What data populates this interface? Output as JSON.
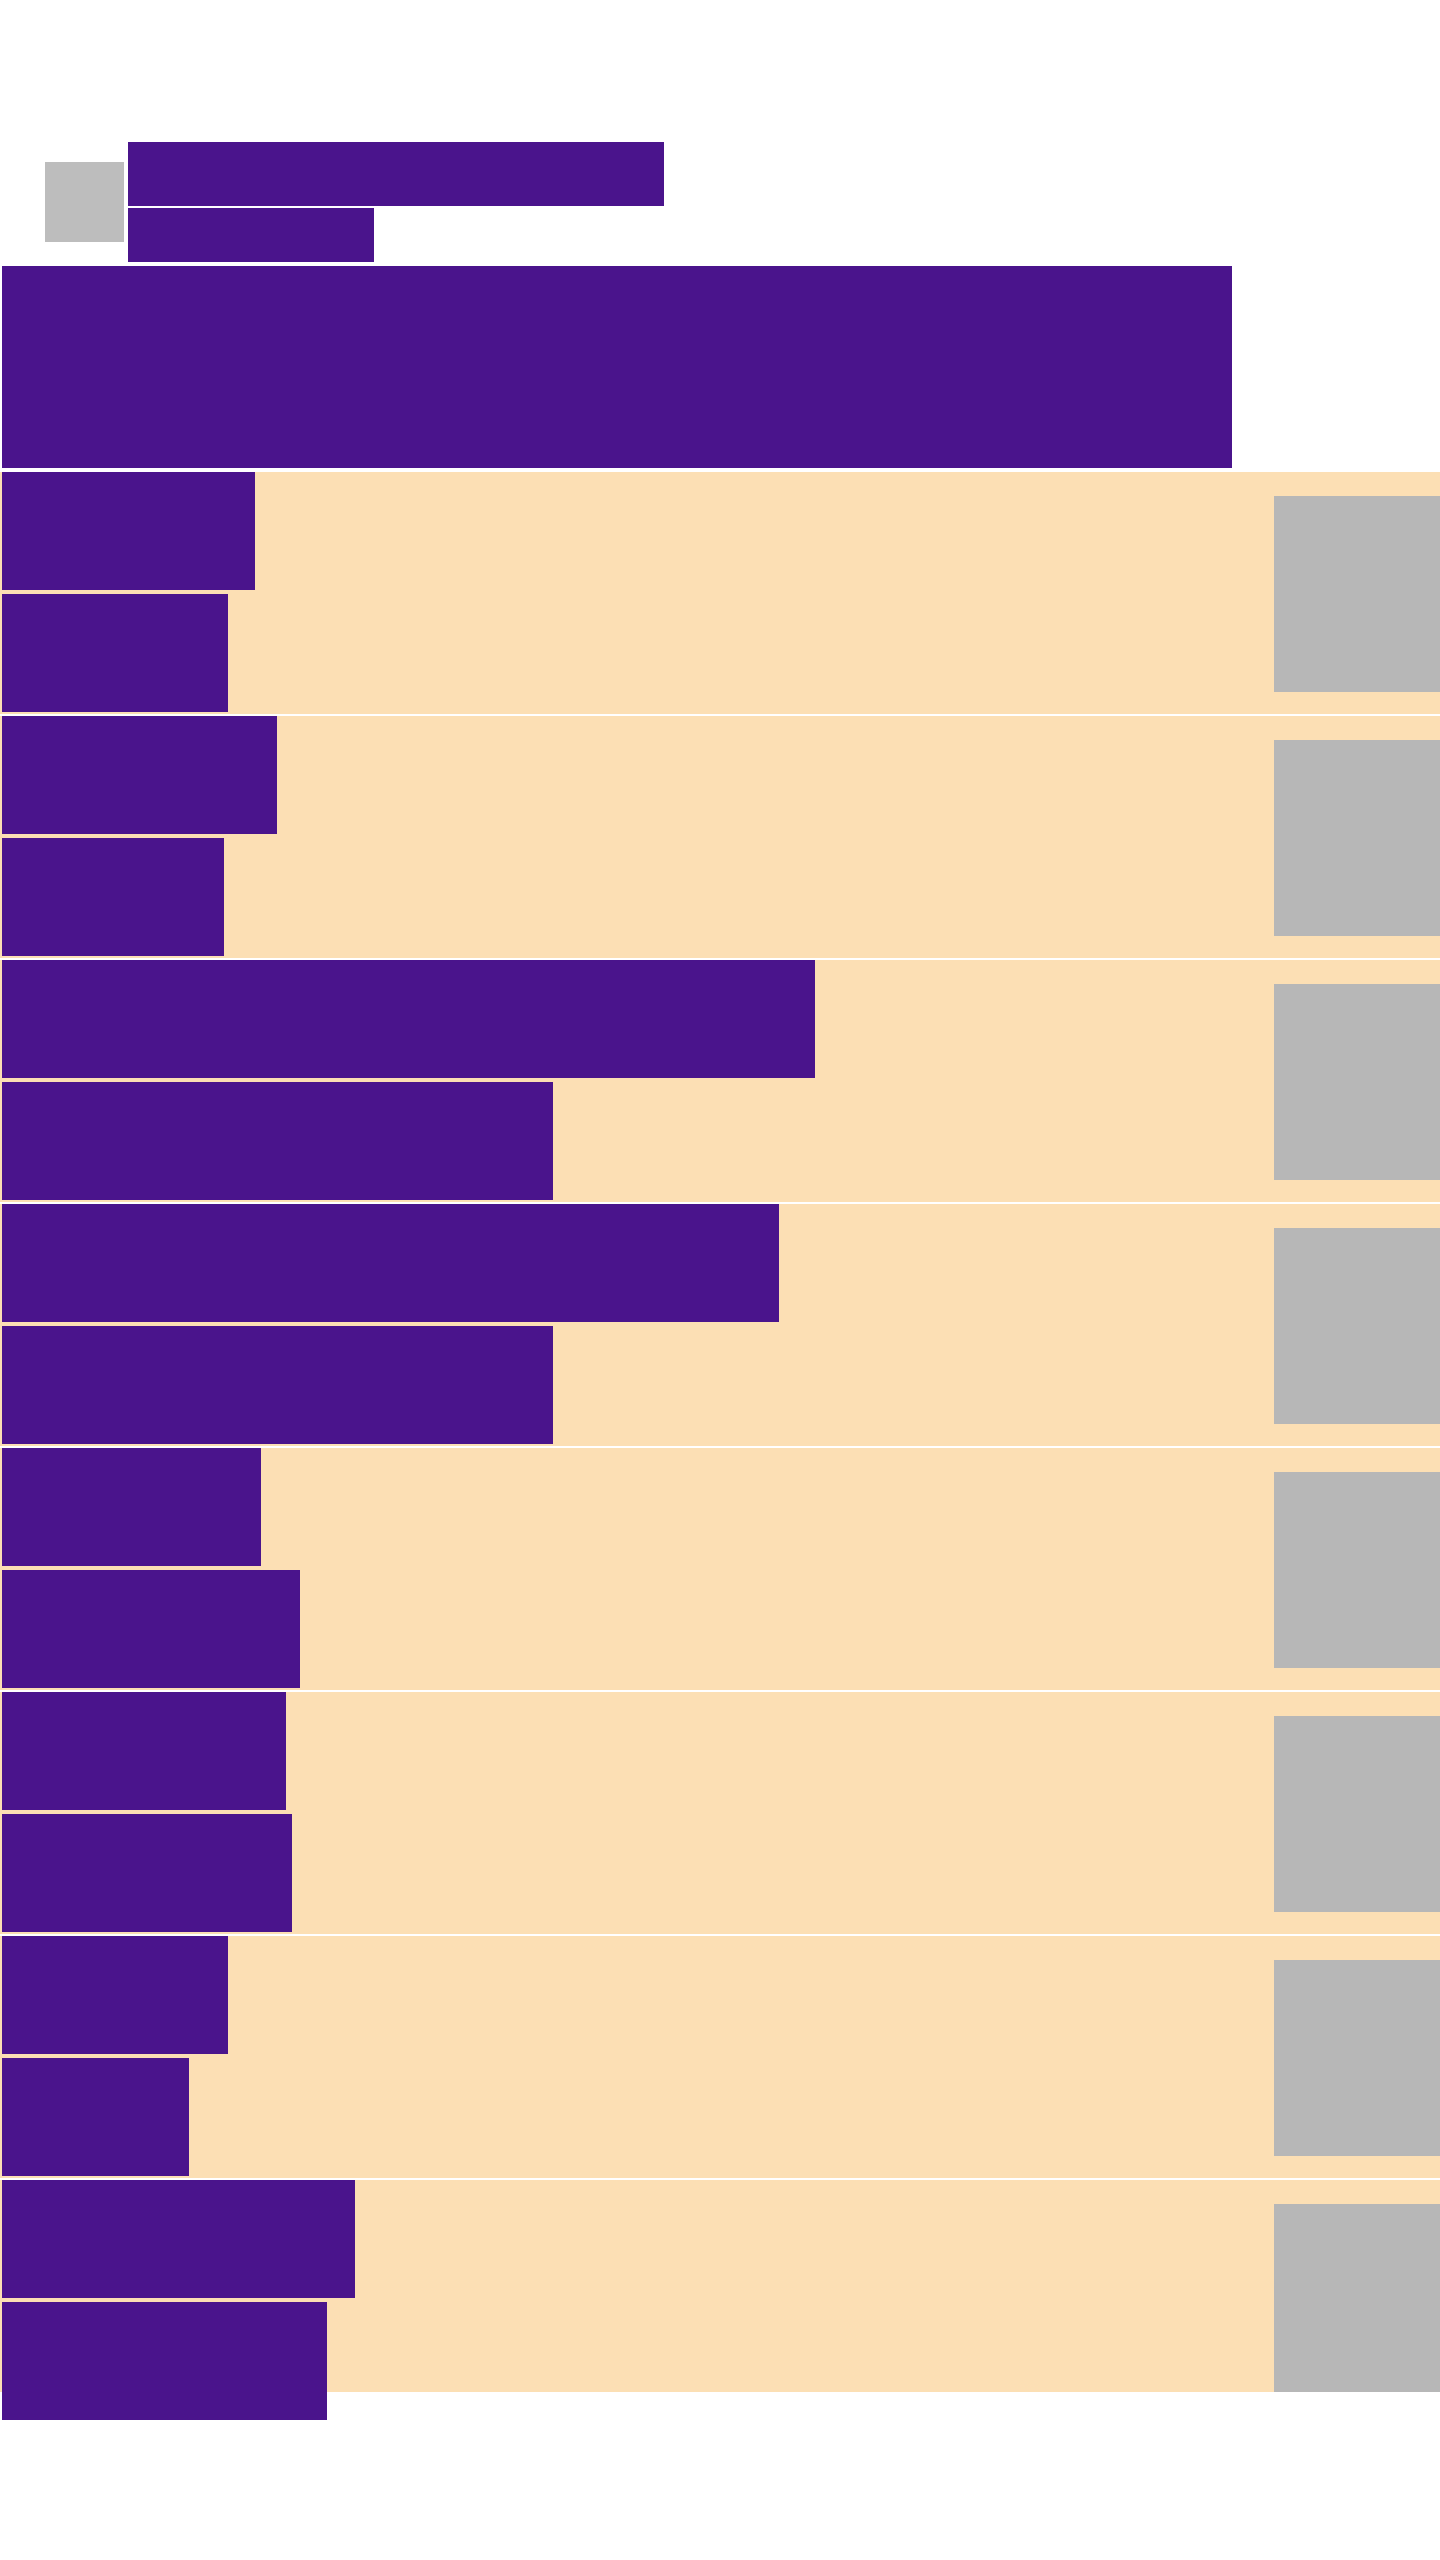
{
  "header": {
    "title": "",
    "subtitle": "",
    "banner_text": ""
  },
  "colors": {
    "primary": "#4a148c",
    "card_background": "#fcdfb4",
    "placeholder": "#b7b7b7",
    "page_background": "#ffffff"
  },
  "list": {
    "items": [
      {
        "primary": "",
        "secondary": ""
      },
      {
        "primary": "",
        "secondary": ""
      },
      {
        "primary": "",
        "secondary": ""
      },
      {
        "primary": "",
        "secondary": ""
      },
      {
        "primary": "",
        "secondary": ""
      },
      {
        "primary": "",
        "secondary": ""
      },
      {
        "primary": "",
        "secondary": ""
      },
      {
        "primary": "",
        "secondary": ""
      }
    ]
  }
}
